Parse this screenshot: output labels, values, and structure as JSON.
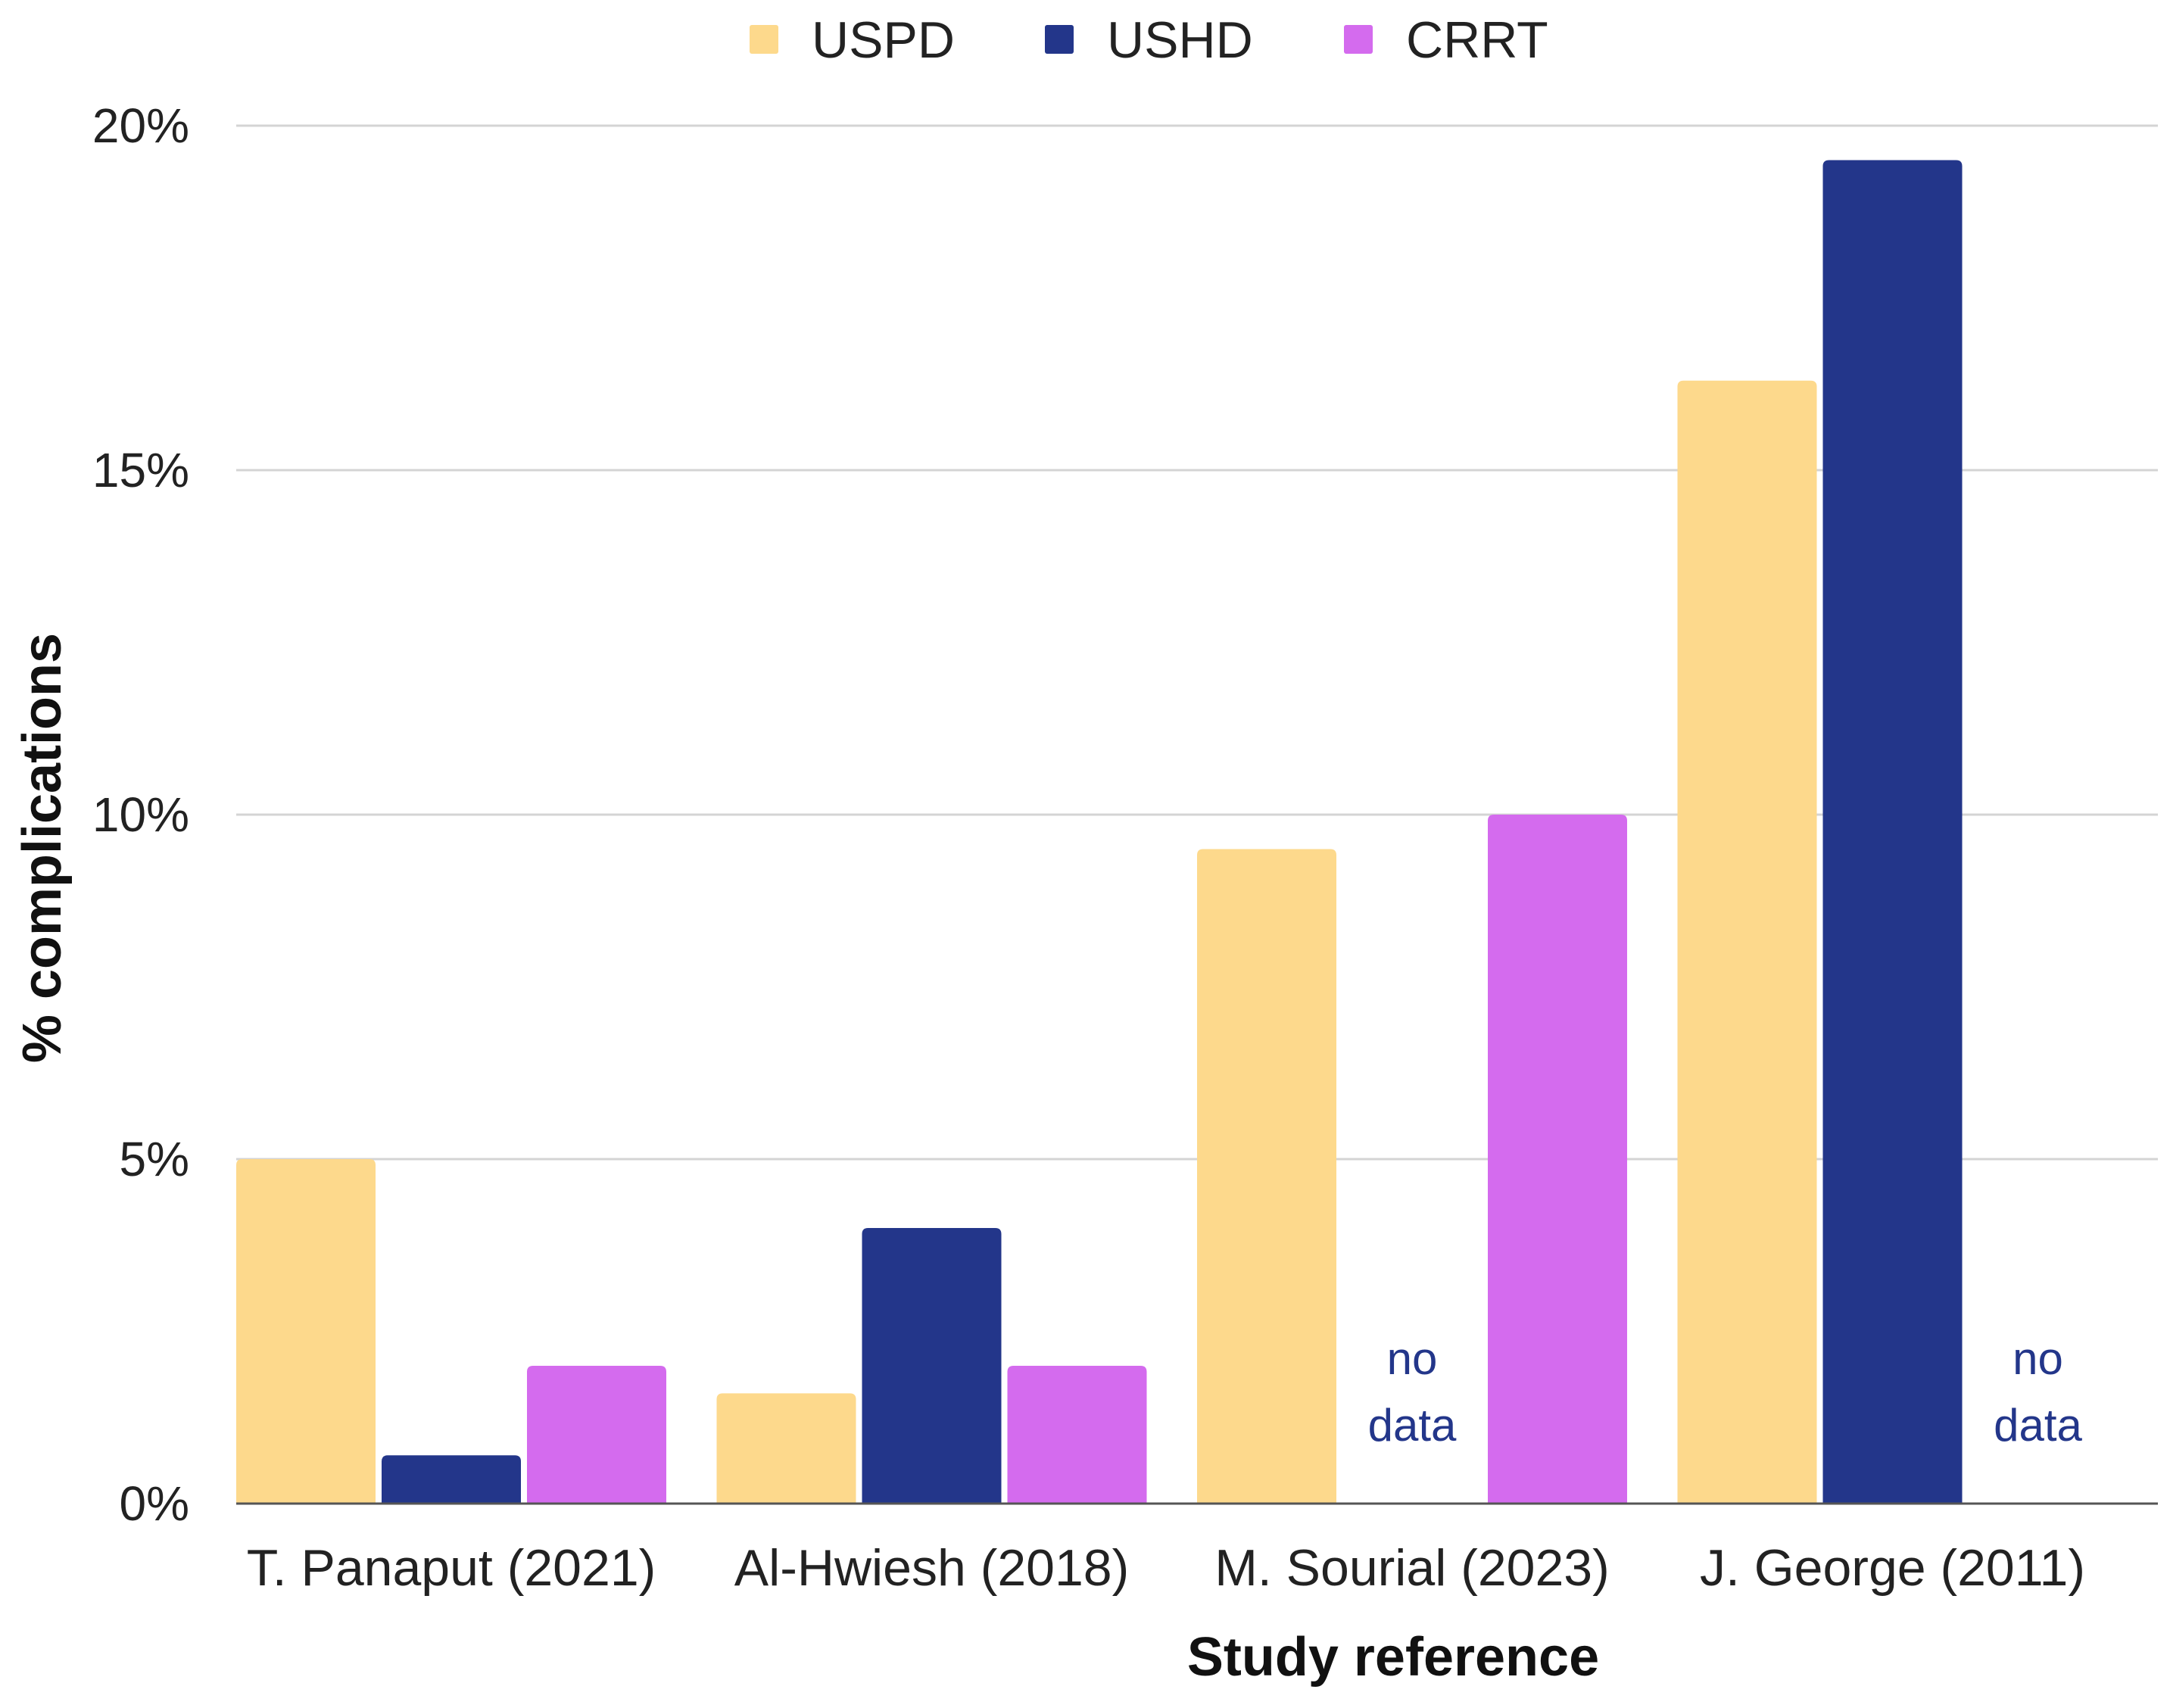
{
  "chart_data": {
    "type": "bar",
    "title": "",
    "xlabel": "Study reference",
    "ylabel": "% complications",
    "categories": [
      "T. Panaput (2021)",
      "Al-Hwiesh (2018)",
      "M. Sourial (2023)",
      "J. George (2011)"
    ],
    "series": [
      {
        "name": "USPD",
        "color": "#fdd98c",
        "values": [
          5.0,
          1.6,
          9.5,
          16.3
        ]
      },
      {
        "name": "USHD",
        "color": "#23368a",
        "values": [
          0.7,
          4.0,
          null,
          19.5
        ]
      },
      {
        "name": "CRRT",
        "color": "#d46bee",
        "values": [
          2.0,
          2.0,
          10.0,
          null
        ]
      }
    ],
    "ylim": [
      0,
      20
    ],
    "yticks": [
      0,
      5,
      10,
      15,
      20
    ],
    "ytick_labels": [
      "0%",
      "5%",
      "10%",
      "15%",
      "20%"
    ],
    "grid": true,
    "legend_position": "top-center",
    "annotations": [
      {
        "category_index": 2,
        "series_index": 1,
        "lines": [
          "no",
          "data"
        ]
      },
      {
        "category_index": 3,
        "series_index": 2,
        "lines": [
          "no",
          "data"
        ]
      }
    ],
    "annotation_color": "#23368a"
  }
}
